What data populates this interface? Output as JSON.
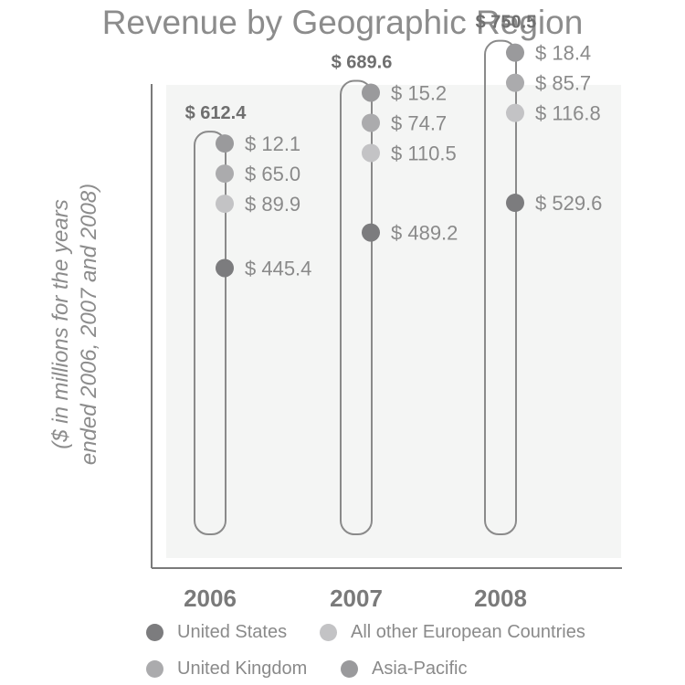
{
  "chart_data": {
    "type": "bar",
    "title": "Revenue by Geographic Region",
    "ylabel_lines": [
      "($ in millions for the years",
      "ended 2006, 2007 and 2008)"
    ],
    "categories": [
      "2006",
      "2007",
      "2008"
    ],
    "totals": [
      "$ 612.4",
      "$ 689.6",
      "$ 750.5"
    ],
    "series": [
      {
        "name": "Asia-Pacific",
        "color": "#9a9a9c",
        "values": [
          12.1,
          15.2,
          18.4
        ],
        "labels": [
          "$ 12.1",
          "$ 15.2",
          "$ 18.4"
        ]
      },
      {
        "name": "United Kingdom",
        "color": "#ababad",
        "values": [
          65.0,
          74.7,
          85.7
        ],
        "labels": [
          "$ 65.0",
          "$ 74.7",
          "$ 85.7"
        ]
      },
      {
        "name": "All other European Countries",
        "color": "#c3c3c5",
        "values": [
          89.9,
          110.5,
          116.8
        ],
        "labels": [
          "$ 89.9",
          "$ 110.5",
          "$ 116.8"
        ]
      },
      {
        "name": "United States",
        "color": "#7c7c7e",
        "values": [
          445.4,
          489.2,
          529.6
        ],
        "labels": [
          "$ 445.4",
          "$ 489.2",
          "$ 529.6"
        ]
      }
    ],
    "grid": false
  },
  "legend": {
    "items": [
      {
        "label": "United States",
        "color": "#7c7c7e"
      },
      {
        "label": "All other European Countries",
        "color": "#c3c3c5"
      },
      {
        "label": "United Kingdom",
        "color": "#ababad"
      },
      {
        "label": "Asia-Pacific",
        "color": "#9a9a9c"
      }
    ]
  }
}
